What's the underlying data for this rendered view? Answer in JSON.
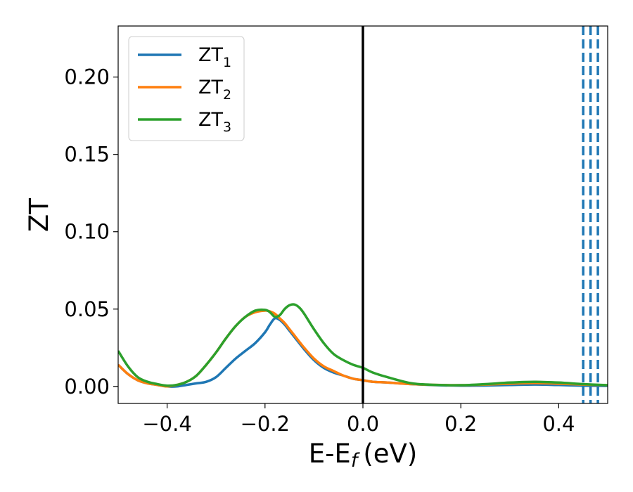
{
  "chart_data": {
    "type": "line",
    "xlabel": "E-E",
    "xlabel_sub": "f",
    "xlabel_unit": "(eV)",
    "ylabel": "ZT",
    "xlim": [
      -0.5,
      0.5
    ],
    "ylim": [
      -0.011,
      0.233
    ],
    "x_ticks": [
      -0.4,
      -0.2,
      0.0,
      0.2,
      0.4
    ],
    "x_tick_labels": [
      "−0.4",
      "−0.2",
      "0.0",
      "0.2",
      "0.4"
    ],
    "y_ticks": [
      0.0,
      0.05,
      0.1,
      0.15,
      0.2
    ],
    "y_tick_labels": [
      "0.00",
      "0.05",
      "0.10",
      "0.15",
      "0.20"
    ],
    "grid": false,
    "legend_position": "top-left",
    "vline_solid": {
      "x": 0.0,
      "color": "#000000"
    },
    "vlines_dashed": {
      "x": [
        0.45,
        0.465,
        0.48
      ],
      "color": "#1f77b4"
    },
    "series": [
      {
        "name": "ZT",
        "name_sub": "1",
        "color": "#1f77b4",
        "x": [
          -0.5,
          -0.48,
          -0.46,
          -0.44,
          -0.42,
          -0.4,
          -0.38,
          -0.36,
          -0.34,
          -0.32,
          -0.3,
          -0.28,
          -0.26,
          -0.24,
          -0.22,
          -0.2,
          -0.19,
          -0.18,
          -0.17,
          -0.16,
          -0.15,
          -0.14,
          -0.12,
          -0.1,
          -0.08,
          -0.06,
          -0.04,
          -0.02,
          0.0,
          0.02,
          0.05,
          0.1,
          0.15,
          0.2,
          0.25,
          0.3,
          0.35,
          0.4,
          0.45,
          0.5
        ],
        "y": [
          0.014,
          0.008,
          0.004,
          0.002,
          0.001,
          0.0,
          0.0,
          0.001,
          0.002,
          0.003,
          0.006,
          0.012,
          0.018,
          0.023,
          0.028,
          0.035,
          0.04,
          0.044,
          0.043,
          0.04,
          0.036,
          0.032,
          0.024,
          0.017,
          0.012,
          0.009,
          0.007,
          0.005,
          0.004,
          0.003,
          0.0025,
          0.0015,
          0.0008,
          0.0005,
          0.0006,
          0.0009,
          0.0012,
          0.0009,
          0.0005,
          0.0003
        ]
      },
      {
        "name": "ZT",
        "name_sub": "2",
        "color": "#ff7f0e",
        "x": [
          -0.5,
          -0.48,
          -0.46,
          -0.44,
          -0.42,
          -0.4,
          -0.38,
          -0.36,
          -0.34,
          -0.32,
          -0.3,
          -0.28,
          -0.26,
          -0.24,
          -0.22,
          -0.2,
          -0.19,
          -0.18,
          -0.17,
          -0.16,
          -0.15,
          -0.14,
          -0.12,
          -0.1,
          -0.08,
          -0.06,
          -0.04,
          -0.02,
          0.0,
          0.02,
          0.05,
          0.1,
          0.15,
          0.2,
          0.25,
          0.3,
          0.35,
          0.4,
          0.45,
          0.5
        ],
        "y": [
          0.014,
          0.008,
          0.004,
          0.002,
          0.001,
          0.0,
          0.001,
          0.003,
          0.007,
          0.014,
          0.022,
          0.031,
          0.039,
          0.045,
          0.048,
          0.049,
          0.0485,
          0.047,
          0.044,
          0.041,
          0.037,
          0.033,
          0.025,
          0.018,
          0.013,
          0.01,
          0.007,
          0.005,
          0.004,
          0.003,
          0.0025,
          0.0015,
          0.001,
          0.0008,
          0.0012,
          0.0018,
          0.0022,
          0.0018,
          0.0012,
          0.0008
        ]
      },
      {
        "name": "ZT",
        "name_sub": "3",
        "color": "#2ca02c",
        "x": [
          -0.5,
          -0.48,
          -0.46,
          -0.44,
          -0.42,
          -0.4,
          -0.38,
          -0.36,
          -0.34,
          -0.32,
          -0.3,
          -0.28,
          -0.26,
          -0.24,
          -0.22,
          -0.2,
          -0.19,
          -0.18,
          -0.17,
          -0.16,
          -0.15,
          -0.14,
          -0.13,
          -0.12,
          -0.1,
          -0.08,
          -0.06,
          -0.04,
          -0.02,
          0.0,
          0.02,
          0.05,
          0.1,
          0.15,
          0.2,
          0.25,
          0.3,
          0.35,
          0.4,
          0.45,
          0.5
        ],
        "y": [
          0.023,
          0.013,
          0.006,
          0.003,
          0.0015,
          0.0005,
          0.001,
          0.003,
          0.007,
          0.014,
          0.022,
          0.031,
          0.039,
          0.045,
          0.049,
          0.0495,
          0.048,
          0.045,
          0.046,
          0.05,
          0.0525,
          0.053,
          0.051,
          0.047,
          0.037,
          0.028,
          0.021,
          0.017,
          0.014,
          0.012,
          0.009,
          0.006,
          0.002,
          0.001,
          0.0008,
          0.0015,
          0.0025,
          0.003,
          0.0025,
          0.0015,
          0.0008
        ]
      }
    ]
  }
}
